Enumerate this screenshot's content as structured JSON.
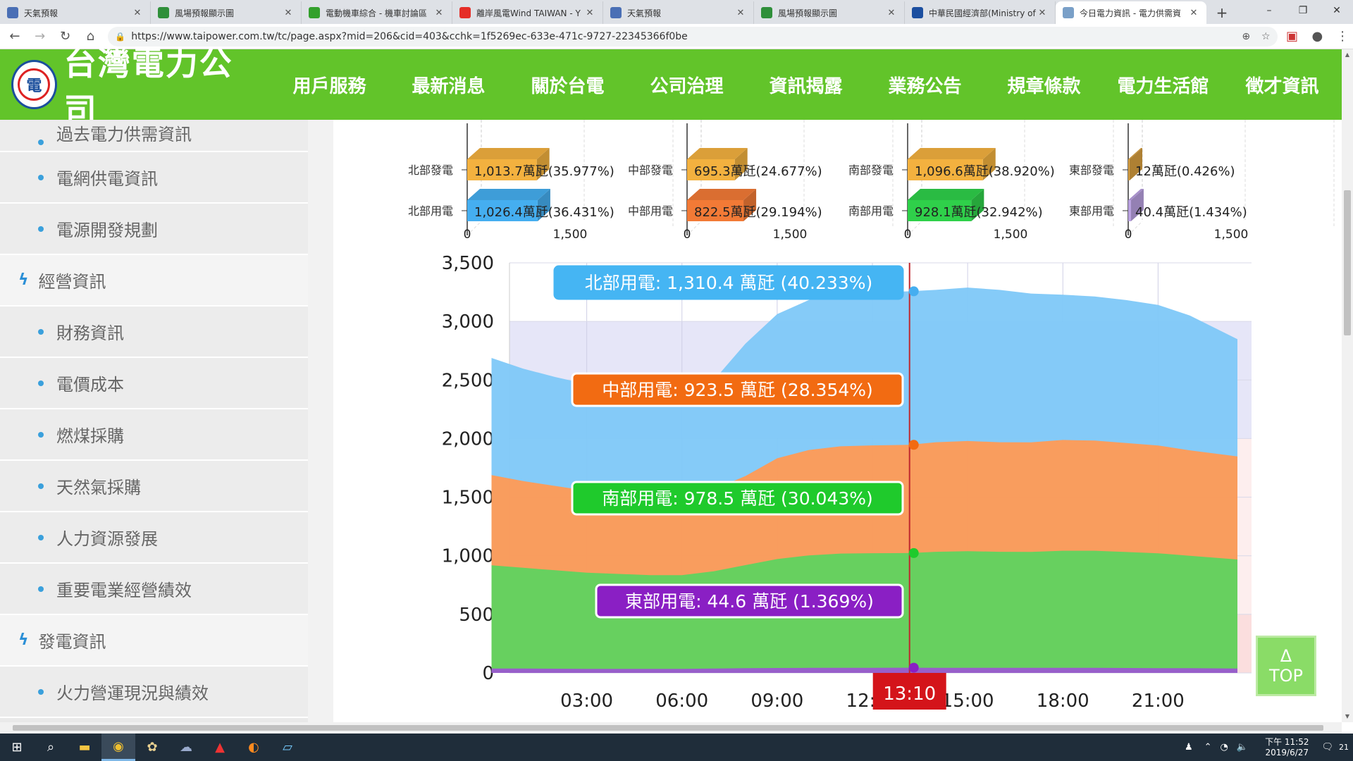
{
  "browser": {
    "tabs": [
      {
        "title": "天氣預報",
        "icon_color": "#4a6fb5"
      },
      {
        "title": "風場預報顯示圖",
        "icon_color": "#2f8f3a"
      },
      {
        "title": "電動機車綜合 - 機車討論區",
        "icon_color": "#33a02c"
      },
      {
        "title": "離岸風電Wind TAIWAN - Y",
        "icon_color": "#e52d27"
      },
      {
        "title": "天氣預報",
        "icon_color": "#4a6fb5"
      },
      {
        "title": "風場預報顯示圖",
        "icon_color": "#2f8f3a"
      },
      {
        "title": "中華民國經濟部(Ministry of",
        "icon_color": "#1c4fa0"
      },
      {
        "title": "今日電力資訊 - 電力供需資",
        "icon_color": "#7aa0c8",
        "active": true
      }
    ],
    "url": "https://www.taipower.com.tw/tc/page.aspx?mid=206&cid=403&cchk=1f5269ec-633e-471c-9727-22345366f0be"
  },
  "header": {
    "logo_text": "台灣電力公司",
    "nav": [
      "用戶服務",
      "最新消息",
      "關於台電",
      "公司治理",
      "資訊揭露",
      "業務公告",
      "規章條款",
      "電力生活館",
      "徵才資訊"
    ],
    "active_nav": "資訊揭露"
  },
  "sidebar": {
    "items": [
      {
        "type": "sub",
        "label": "過去電力供需資訊"
      },
      {
        "type": "sub",
        "label": "電網供電資訊"
      },
      {
        "type": "sub",
        "label": "電源開發規劃"
      },
      {
        "type": "cat",
        "label": "經營資訊"
      },
      {
        "type": "sub",
        "label": "財務資訊"
      },
      {
        "type": "sub",
        "label": "電價成本"
      },
      {
        "type": "sub",
        "label": "燃煤採購"
      },
      {
        "type": "sub",
        "label": "天然氣採購"
      },
      {
        "type": "sub",
        "label": "人力資源發展"
      },
      {
        "type": "sub",
        "label": "重要電業經營績效"
      },
      {
        "type": "cat",
        "label": "發電資訊"
      },
      {
        "type": "sub",
        "label": "火力營運現況與績效"
      }
    ]
  },
  "top_button": {
    "arrow": "Δ",
    "label": "TOP"
  },
  "taskbar": {
    "time": "下午 11:52",
    "date": "2019/6/27",
    "notifications": "21"
  },
  "chart_data": [
    {
      "type": "bar",
      "region": "北部",
      "labels": [
        "北部發電",
        "北部用電"
      ],
      "values": [
        1013.7,
        1026.4
      ],
      "value_labels": [
        "1,013.7萬瓩(35.977%)",
        "1,026.4萬瓩(36.431%)"
      ],
      "colors": [
        "#f3b13f",
        "#45aef0"
      ],
      "xticks": [
        "0",
        "1,500"
      ],
      "xlim": [
        0,
        3000
      ]
    },
    {
      "type": "bar",
      "region": "中部",
      "labels": [
        "中部發電",
        "中部用電"
      ],
      "values": [
        695.3,
        822.5
      ],
      "value_labels": [
        "695.3萬瓩(24.677%)",
        "822.5萬瓩(29.194%)"
      ],
      "colors": [
        "#f3b13f",
        "#f27a36"
      ],
      "xticks": [
        "0",
        "1,500"
      ],
      "xlim": [
        0,
        3000
      ]
    },
    {
      "type": "bar",
      "region": "南部",
      "labels": [
        "南部發電",
        "南部用電"
      ],
      "values": [
        1096.6,
        928.1
      ],
      "value_labels": [
        "1,096.6萬瓩(38.920%)",
        "928.1萬瓩(32.942%)"
      ],
      "colors": [
        "#f3b13f",
        "#2fd04a"
      ],
      "xticks": [
        "0",
        "1,500"
      ],
      "xlim": [
        0,
        3000
      ]
    },
    {
      "type": "bar",
      "region": "東部",
      "labels": [
        "東部發電",
        "東部用電"
      ],
      "values": [
        12,
        40.4
      ],
      "value_labels": [
        "12萬瓩(0.426%)",
        "40.4萬瓩(1.434%)"
      ],
      "colors": [
        "#d9a040",
        "#b9a0e0"
      ],
      "xticks": [
        "0",
        "1,500"
      ],
      "xlim": [
        0,
        3000
      ]
    },
    {
      "type": "area",
      "stacked": true,
      "ylim": [
        0,
        3500
      ],
      "yticks": [
        "0",
        "500",
        "1,000",
        "1,500",
        "2,000",
        "2,500",
        "3,000",
        "3,500"
      ],
      "xticks": [
        "03:00",
        "06:00",
        "09:00",
        "12:00",
        "15:00",
        "18:00",
        "21:00"
      ],
      "xlim": [
        0,
        24
      ],
      "grid": true,
      "cursor_time": "13:10",
      "cursor_x": 13.17,
      "x": [
        0,
        1,
        2,
        3,
        4,
        5,
        6,
        7,
        8,
        9,
        10,
        11,
        12,
        13.17,
        14,
        15,
        16,
        17,
        18,
        19,
        20,
        21,
        22,
        23.5
      ],
      "series": [
        {
          "name": "東部用電",
          "color": "#9b59d0",
          "values": [
            38,
            37,
            36,
            35,
            35,
            35,
            35,
            37,
            40,
            42,
            43,
            44,
            44,
            44.6,
            44,
            44,
            44,
            43,
            43,
            43,
            42,
            41,
            40,
            38
          ]
        },
        {
          "name": "南部用電",
          "color": "#5fd35f",
          "values": [
            880,
            860,
            840,
            820,
            810,
            800,
            800,
            830,
            880,
            930,
            960,
            975,
            978,
            978.5,
            990,
            995,
            990,
            990,
            1000,
            1000,
            990,
            980,
            960,
            930
          ]
        },
        {
          "name": "中部用電",
          "color": "#ff9a55",
          "values": [
            770,
            740,
            720,
            700,
            690,
            680,
            680,
            700,
            760,
            860,
            900,
            915,
            920,
            923.5,
            935,
            940,
            935,
            935,
            945,
            940,
            930,
            920,
            900,
            880
          ]
        },
        {
          "name": "北部用電",
          "color": "#7ec8f8",
          "values": [
            1000,
            960,
            930,
            910,
            890,
            880,
            890,
            930,
            1130,
            1230,
            1280,
            1300,
            1305,
            1310.4,
            1300,
            1310,
            1300,
            1270,
            1240,
            1230,
            1220,
            1200,
            1150,
            1000
          ]
        }
      ],
      "labels": {
        "north": "北部用電: 1,310.4 萬瓩 (40.233%)",
        "central": "中部用電: 923.5 萬瓩 (28.354%)",
        "south": "南部用電: 978.5 萬瓩 (30.043%)",
        "east": "東部用電: 44.6 萬瓩 (1.369%)"
      }
    }
  ]
}
